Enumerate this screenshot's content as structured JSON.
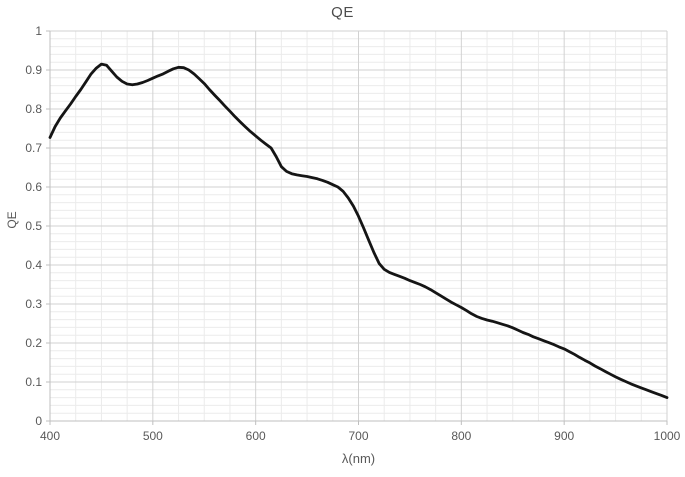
{
  "chart": {
    "title": "QE",
    "x_axis": {
      "label": "λ(nm)",
      "min": 400,
      "max": 1000,
      "major_step": 100,
      "minor_step": 25,
      "tick_labels": [
        "400",
        "500",
        "600",
        "700",
        "800",
        "900",
        "1000"
      ]
    },
    "y_axis": {
      "label": "QE",
      "min": 0,
      "max": 1,
      "major_step": 0.1,
      "minor_step": 0.02,
      "tick_labels": [
        "1",
        "0.9",
        "0.8",
        "0.7",
        "0.6",
        "0.5",
        "0.4",
        "0.3",
        "0.2",
        "0.1",
        "0"
      ]
    },
    "colors": {
      "curve": "#151515",
      "major_grid": "#d2d2d2",
      "minor_grid": "#ebebeb",
      "axis": "#bfbfbf",
      "text": "#595959"
    }
  },
  "chart_data": {
    "type": "line",
    "title": "QE",
    "xlabel": "λ(nm)",
    "ylabel": "QE",
    "xlim": [
      400,
      1000
    ],
    "ylim": [
      0,
      1
    ],
    "grid": "major+minor",
    "legend": false,
    "series": [
      {
        "name": "QE",
        "x": [
          400,
          405,
          410,
          415,
          420,
          425,
          430,
          435,
          440,
          445,
          450,
          455,
          460,
          465,
          470,
          475,
          480,
          485,
          490,
          495,
          500,
          505,
          510,
          515,
          520,
          525,
          530,
          535,
          540,
          545,
          550,
          555,
          560,
          565,
          570,
          575,
          580,
          585,
          590,
          595,
          600,
          605,
          610,
          615,
          620,
          625,
          630,
          635,
          640,
          645,
          650,
          655,
          660,
          665,
          670,
          675,
          680,
          685,
          690,
          695,
          700,
          705,
          710,
          715,
          720,
          725,
          730,
          735,
          740,
          745,
          750,
          755,
          760,
          765,
          770,
          775,
          780,
          785,
          790,
          795,
          800,
          805,
          810,
          815,
          820,
          825,
          830,
          835,
          840,
          845,
          850,
          855,
          860,
          865,
          870,
          875,
          880,
          885,
          890,
          895,
          900,
          905,
          910,
          915,
          920,
          925,
          930,
          935,
          940,
          945,
          950,
          955,
          960,
          965,
          970,
          975,
          980,
          985,
          990,
          995,
          1000
        ],
        "y": [
          0.727,
          0.755,
          0.777,
          0.795,
          0.813,
          0.832,
          0.85,
          0.87,
          0.89,
          0.905,
          0.915,
          0.912,
          0.897,
          0.882,
          0.871,
          0.864,
          0.862,
          0.864,
          0.868,
          0.873,
          0.879,
          0.885,
          0.89,
          0.897,
          0.903,
          0.907,
          0.906,
          0.9,
          0.89,
          0.878,
          0.865,
          0.85,
          0.836,
          0.822,
          0.808,
          0.794,
          0.78,
          0.767,
          0.754,
          0.742,
          0.731,
          0.72,
          0.71,
          0.7,
          0.678,
          0.652,
          0.64,
          0.634,
          0.631,
          0.629,
          0.627,
          0.624,
          0.621,
          0.617,
          0.612,
          0.606,
          0.6,
          0.589,
          0.572,
          0.551,
          0.525,
          0.495,
          0.463,
          0.432,
          0.404,
          0.389,
          0.381,
          0.376,
          0.371,
          0.366,
          0.36,
          0.355,
          0.35,
          0.344,
          0.337,
          0.329,
          0.321,
          0.313,
          0.305,
          0.298,
          0.291,
          0.283,
          0.275,
          0.268,
          0.263,
          0.259,
          0.256,
          0.252,
          0.248,
          0.244,
          0.239,
          0.233,
          0.227,
          0.222,
          0.216,
          0.211,
          0.206,
          0.201,
          0.196,
          0.19,
          0.185,
          0.178,
          0.171,
          0.163,
          0.156,
          0.149,
          0.141,
          0.134,
          0.127,
          0.12,
          0.113,
          0.107,
          0.101,
          0.095,
          0.09,
          0.085,
          0.08,
          0.075,
          0.07,
          0.065,
          0.06
        ]
      }
    ]
  }
}
